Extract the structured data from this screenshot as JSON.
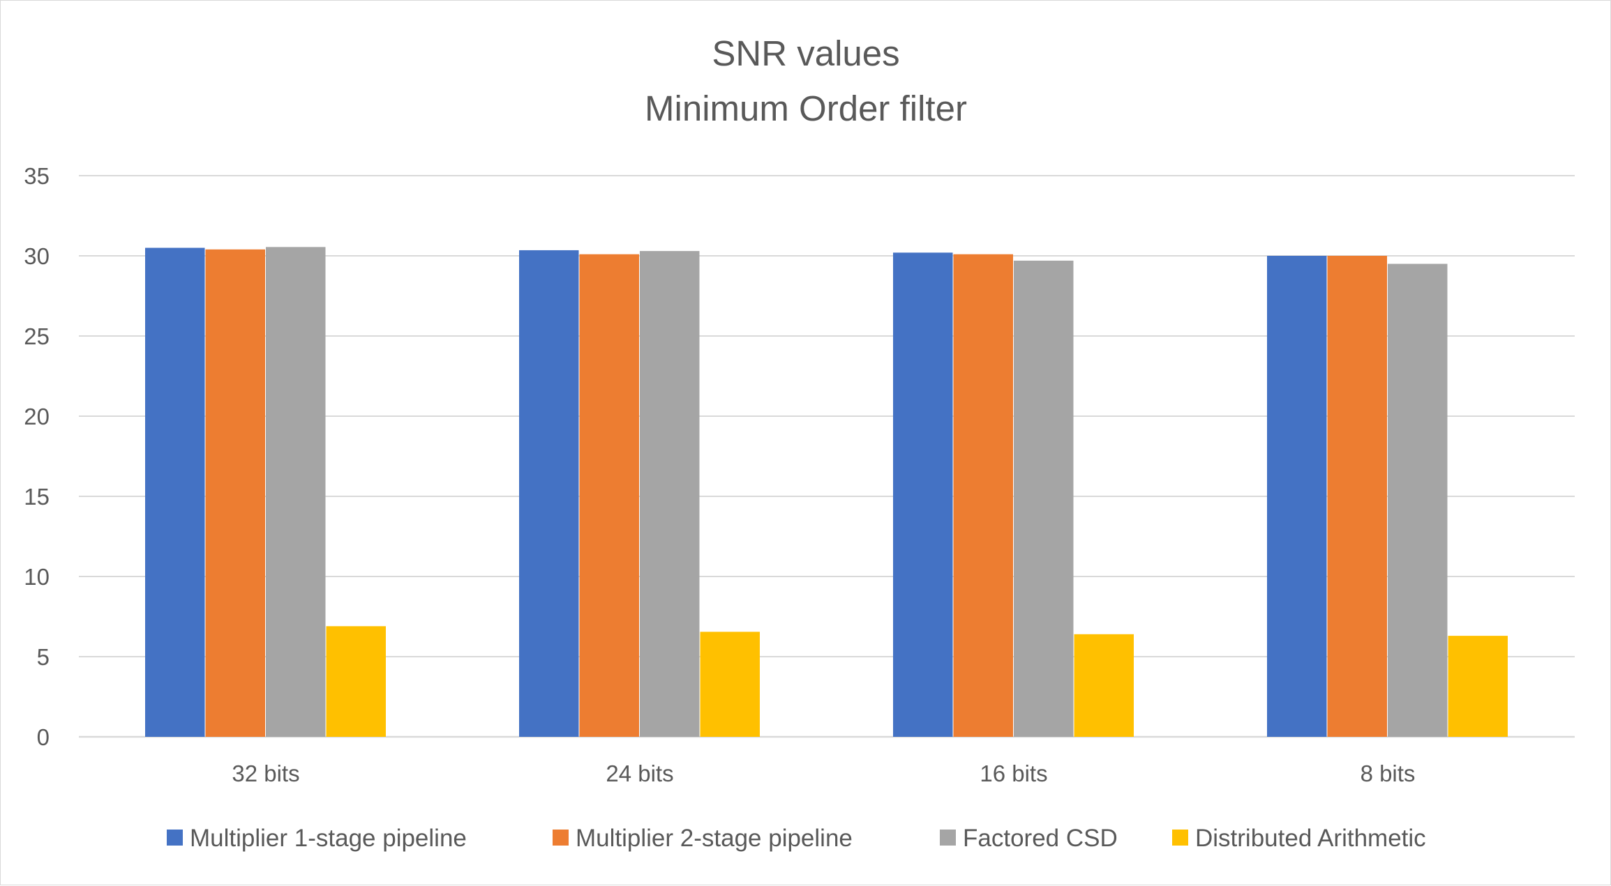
{
  "chart_data": {
    "type": "bar",
    "title": "SNR values",
    "subtitle": "Minimum Order filter",
    "xlabel": "",
    "ylabel": "",
    "categories": [
      "32 bits",
      "24 bits",
      "16 bits",
      "8 bits"
    ],
    "series": [
      {
        "name": "Multiplier 1-stage pipeline",
        "color": "#4472C4",
        "values": [
          30.5,
          30.35,
          30.2,
          30.0
        ]
      },
      {
        "name": "Multiplier 2-stage pipeline",
        "color": "#ED7D31",
        "values": [
          30.4,
          30.1,
          30.1,
          30.0
        ]
      },
      {
        "name": "Factored CSD",
        "color": "#A5A5A5",
        "values": [
          30.55,
          30.3,
          29.7,
          29.5
        ]
      },
      {
        "name": "Distributed Arithmetic",
        "color": "#FFC000",
        "values": [
          6.9,
          6.55,
          6.4,
          6.3
        ]
      }
    ],
    "ylim": [
      0,
      35
    ],
    "yticks": [
      "0",
      "5",
      "10",
      "15",
      "20",
      "25",
      "30",
      "35"
    ],
    "grid": true,
    "gridline_color": "#d9d9d9",
    "legend_position": "bottom"
  }
}
